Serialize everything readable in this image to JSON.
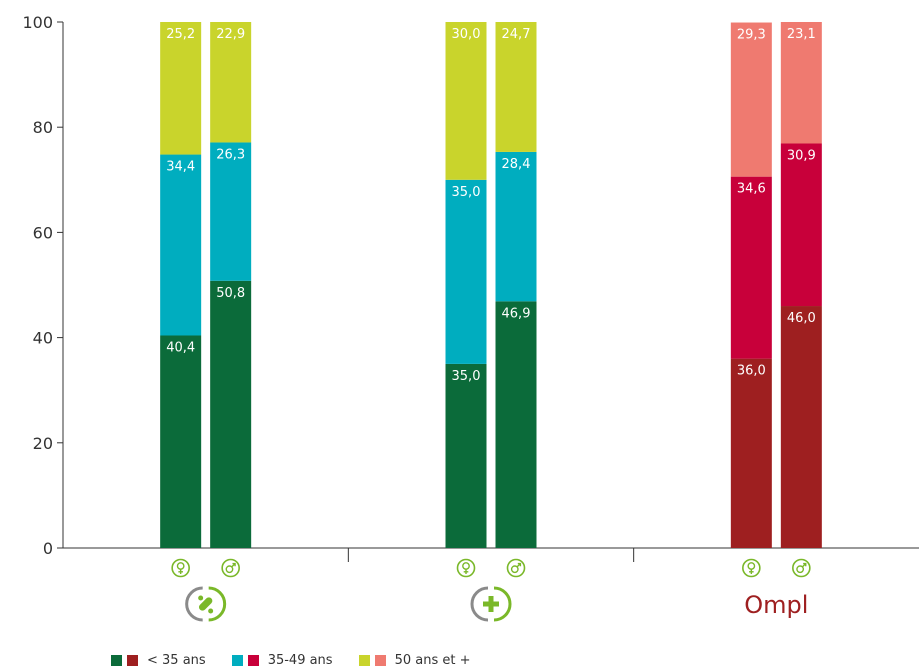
{
  "chart_data": {
    "type": "bar",
    "stacked": true,
    "ylim": [
      0,
      100
    ],
    "yticks": [
      0,
      20,
      40,
      60,
      80,
      100
    ],
    "grid": false,
    "legend_position": "bottom-left",
    "groups": [
      {
        "icon": "pharmacist-pills-icon",
        "brand": "green",
        "bars": [
          {
            "sex": "female",
            "values": [
              40.4,
              34.4,
              25.2
            ],
            "labels": [
              "40,4",
              "34,4",
              "25,2"
            ]
          },
          {
            "sex": "male",
            "values": [
              50.8,
              26.3,
              22.9
            ],
            "labels": [
              "50,8",
              "26,3",
              "22,9"
            ]
          }
        ]
      },
      {
        "icon": "pharmacy-cross-icon",
        "brand": "green",
        "bars": [
          {
            "sex": "female",
            "values": [
              35.0,
              35.0,
              30.0
            ],
            "labels": [
              "35,0",
              "35,0",
              "30,0"
            ]
          },
          {
            "sex": "male",
            "values": [
              46.9,
              28.4,
              24.7
            ],
            "labels": [
              "46,9",
              "28,4",
              "24,7"
            ]
          }
        ]
      },
      {
        "icon": "ompl-logo",
        "logo_text": "Ompl",
        "brand": "red",
        "bars": [
          {
            "sex": "female",
            "values": [
              36.0,
              34.6,
              29.3
            ],
            "labels": [
              "36,0",
              "34,6",
              "29,3"
            ]
          },
          {
            "sex": "male",
            "values": [
              46.0,
              30.9,
              23.1
            ],
            "labels": [
              "46,0",
              "30,9",
              "23,1"
            ]
          }
        ]
      }
    ],
    "series": [
      {
        "name": "< 35 ans"
      },
      {
        "name": "35-49 ans"
      },
      {
        "name": "50 ans et +"
      }
    ],
    "colors": {
      "green": [
        "#0b6b3a",
        "#00adbf",
        "#c9d42c"
      ],
      "red": [
        "#9e1f20",
        "#c8003a",
        "#ef7a70"
      ],
      "icon_green": "#7ab829",
      "icon_gray": "#8a8a8a",
      "axis": "#333333"
    }
  },
  "legend": {
    "items": [
      {
        "label": "< 35 ans",
        "colors": [
          "#0b6b3a",
          "#9e1f20"
        ]
      },
      {
        "label": "35-49 ans",
        "colors": [
          "#00adbf",
          "#c8003a"
        ]
      },
      {
        "label": "50 ans et +",
        "colors": [
          "#c9d42c",
          "#ef7a70"
        ]
      }
    ]
  }
}
